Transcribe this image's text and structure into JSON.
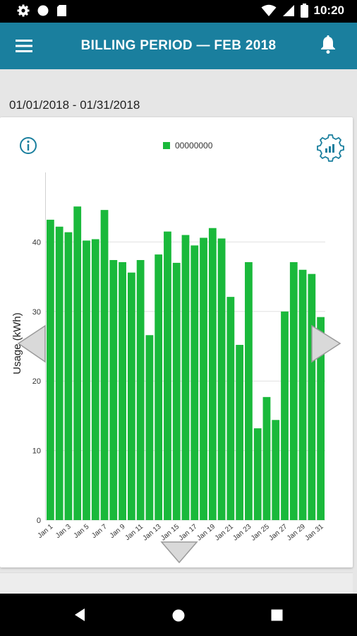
{
  "status_bar": {
    "time": "10:20"
  },
  "app_bar": {
    "title": "BILLING PERIOD  —  FEB 2018"
  },
  "period": {
    "date_range": "01/01/2018 - 01/31/2018"
  },
  "colors": {
    "accent": "#1a7f9e",
    "bar": "#1ab93b",
    "grid": "#e0e0e0"
  },
  "icons": [
    "menu-icon",
    "bell-icon",
    "info-icon",
    "settings-chart-icon",
    "chevron-left-icon",
    "chevron-right-icon",
    "chevron-down-icon",
    "back-icon",
    "home-icon",
    "recents-icon"
  ],
  "chart_data": {
    "type": "bar",
    "legend": {
      "label": "00000000",
      "position": "top-center"
    },
    "ylabel": "Usage (kWh)",
    "xlabel": "",
    "ylim": [
      0,
      50
    ],
    "yticks": [
      0,
      10,
      20,
      30,
      40
    ],
    "grid": true,
    "categories": [
      "Jan 1",
      "Jan 2",
      "Jan 3",
      "Jan 4",
      "Jan 5",
      "Jan 6",
      "Jan 7",
      "Jan 8",
      "Jan 9",
      "Jan 10",
      "Jan 11",
      "Jan 12",
      "Jan 13",
      "Jan 14",
      "Jan 15",
      "Jan 16",
      "Jan 17",
      "Jan 18",
      "Jan 19",
      "Jan 20",
      "Jan 21",
      "Jan 22",
      "Jan 23",
      "Jan 24",
      "Jan 25",
      "Jan 26",
      "Jan 27",
      "Jan 28",
      "Jan 29",
      "Jan 30",
      "Jan 31"
    ],
    "tick_labels": [
      "Jan 1",
      "Jan 3",
      "Jan 5",
      "Jan 7",
      "Jan 9",
      "Jan 11",
      "Jan 13",
      "Jan 15",
      "Jan 17",
      "Jan 19",
      "Jan 21",
      "Jan 23",
      "Jan 25",
      "Jan 27",
      "Jan 29",
      "Jan 31"
    ],
    "values": [
      43.2,
      42.2,
      41.4,
      45.1,
      40.2,
      40.4,
      44.6,
      37.4,
      37.1,
      35.6,
      37.4,
      26.6,
      38.2,
      41.5,
      37.0,
      41.0,
      39.5,
      40.6,
      42.0,
      40.5,
      32.1,
      25.2,
      37.1,
      13.2,
      17.7,
      14.4,
      30.0,
      37.1,
      36.0,
      35.4,
      29.2
    ]
  }
}
